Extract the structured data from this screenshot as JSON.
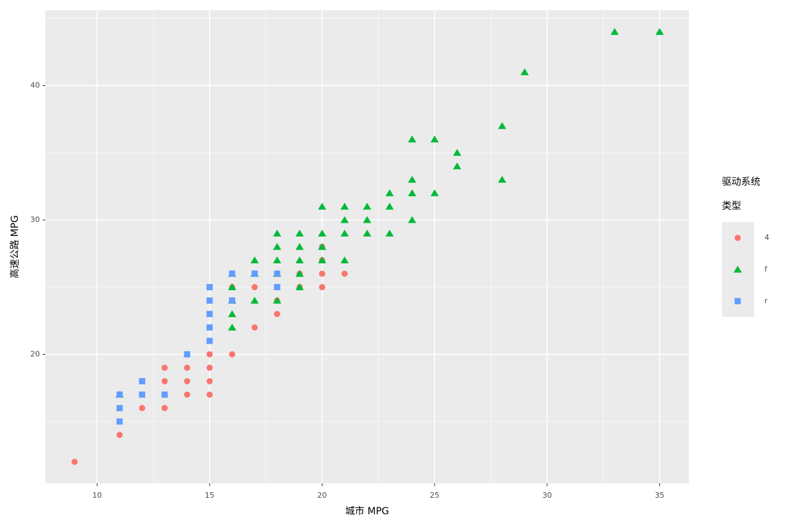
{
  "chart_data": {
    "type": "scatter",
    "x_label": "城市 MPG",
    "y_label": "高速公路 MPG",
    "legend_title": [
      "驱动系统",
      "类型"
    ],
    "xlim": [
      7.7,
      36.3
    ],
    "ylim": [
      10.4,
      45.6
    ],
    "xticks": [
      10,
      15,
      20,
      25,
      30,
      35
    ],
    "yticks": [
      20,
      30,
      40
    ],
    "minor_xticks": [
      7.5,
      12.5,
      17.5,
      22.5,
      27.5,
      32.5
    ],
    "minor_yticks": [
      15,
      25,
      35,
      45
    ],
    "grid": true,
    "legend": "right",
    "series": [
      {
        "name": "4",
        "color": "#F8766D",
        "shape": "circle",
        "x": [
          9,
          11,
          11,
          12,
          13,
          14,
          15,
          12,
          13,
          14,
          15,
          13,
          14,
          15,
          15,
          16,
          17,
          18,
          18,
          19,
          20,
          16,
          17,
          19,
          20,
          21,
          20,
          20
        ],
        "values": [
          12,
          14,
          15,
          16,
          16,
          17,
          17,
          18,
          18,
          18,
          18,
          19,
          19,
          19,
          20,
          20,
          22,
          23,
          24,
          25,
          25,
          25,
          25,
          26,
          26,
          26,
          27,
          28
        ]
      },
      {
        "name": "f",
        "color": "#00BA38",
        "shape": "triangle",
        "x": [
          35,
          33,
          29,
          28,
          24,
          25,
          26,
          26,
          28,
          24,
          23,
          24,
          25,
          20,
          21,
          22,
          23,
          21,
          22,
          24,
          18,
          19,
          20,
          21,
          22,
          23,
          18,
          19,
          20,
          17,
          18,
          19,
          20,
          21,
          16,
          17,
          18,
          19,
          16,
          19,
          16,
          17,
          18,
          16,
          16,
          11
        ],
        "values": [
          44,
          44,
          41,
          37,
          36,
          36,
          35,
          34,
          33,
          33,
          32,
          32,
          32,
          31,
          31,
          31,
          31,
          30,
          30,
          30,
          29,
          29,
          29,
          29,
          29,
          29,
          28,
          28,
          28,
          27,
          27,
          27,
          27,
          27,
          26,
          26,
          26,
          26,
          25,
          25,
          24,
          24,
          24,
          23,
          22,
          17
        ]
      },
      {
        "name": "r",
        "color": "#619CFF",
        "shape": "square",
        "x": [
          11,
          11,
          11,
          12,
          12,
          13,
          14,
          15,
          15,
          15,
          15,
          15,
          16,
          16,
          17,
          18,
          18
        ],
        "values": [
          15,
          16,
          17,
          17,
          18,
          17,
          20,
          21,
          22,
          23,
          24,
          25,
          24,
          26,
          26,
          25,
          26
        ]
      }
    ]
  }
}
